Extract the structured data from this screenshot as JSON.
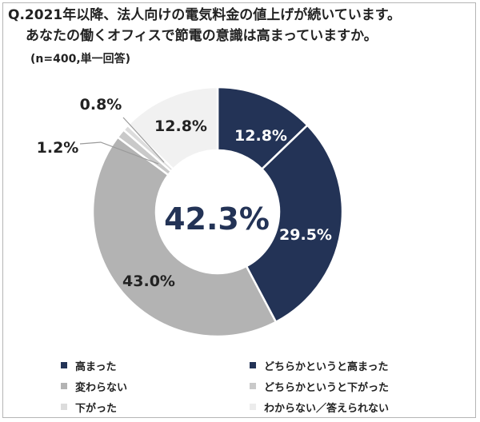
{
  "question": {
    "line1": "Q.2021年以降、法人向けの電気料金の値上げが続いています。",
    "line2": "あなたの働くオフィスで節電の意識は高まっていますか。",
    "sample": "(n=400,単一回答)"
  },
  "chart_data": {
    "type": "pie",
    "donut": true,
    "center_label": "42.3%",
    "series": [
      {
        "name": "高まった",
        "value": 12.8,
        "label": "12.8%",
        "color": "#233356"
      },
      {
        "name": "どちらかというと高まった",
        "value": 29.5,
        "label": "29.5%",
        "color": "#233356"
      },
      {
        "name": "変わらない",
        "value": 43.0,
        "label": "43.0%",
        "color": "#b3b3b3"
      },
      {
        "name": "どちらかというと下がった",
        "value": 1.2,
        "label": "1.2%",
        "color": "#c9c9c9"
      },
      {
        "name": "下がった",
        "value": 0.8,
        "label": "0.8%",
        "color": "#dcdcdc"
      },
      {
        "name": "わからない／答えられない",
        "value": 12.8,
        "label": "12.8%",
        "color": "#f1f1f1"
      }
    ],
    "legend_position": "bottom"
  }
}
